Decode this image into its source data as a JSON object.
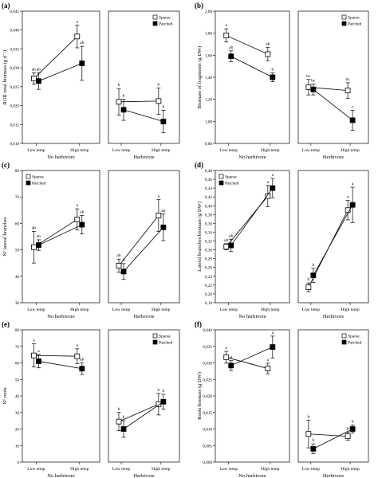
{
  "figure": {
    "category_labels": [
      "Low temp",
      "High temp"
    ],
    "treatment_labels": [
      "No herbivore",
      "Herbivore"
    ],
    "legend": {
      "open": "Sparse",
      "filled": "Patched"
    }
  },
  "chart_data": [
    {
      "panel": "(a)",
      "type": "line",
      "ylabel": "RGR total biomass (g d⁻¹)",
      "ylim": [
        0.01,
        0.045
      ],
      "yticks": [
        "0,010",
        "0,015",
        "0,020",
        "0,025",
        "0,030",
        "0,035",
        "0,040",
        "0,045"
      ],
      "legend_position": "top-right",
      "groups": [
        {
          "label": "No herbivore",
          "series": [
            {
              "name": "Sparse",
              "values": [
                0.0272,
                0.0383
              ],
              "err": [
                0.0015,
                0.003
              ],
              "letters": [
                "ab",
                "a"
              ]
            },
            {
              "name": "Patched",
              "values": [
                0.0265,
                0.0312
              ],
              "err": [
                0.0022,
                0.0045
              ],
              "letters": [
                "ab",
                "ab"
              ]
            }
          ]
        },
        {
          "label": "Herbivore",
          "series": [
            {
              "name": "Sparse",
              "values": [
                0.021,
                0.0212
              ],
              "err": [
                0.0035,
                0.0035
              ],
              "letters": [
                "b",
                "b"
              ]
            },
            {
              "name": "Patched",
              "values": [
                0.0189,
                0.0158
              ],
              "err": [
                0.0028,
                0.003
              ],
              "letters": [
                "b",
                "b"
              ]
            }
          ]
        }
      ]
    },
    {
      "panel": "(b)",
      "type": "line",
      "ylabel": "Biomass of fragments (g DW)",
      "ylim": [
        0.8,
        2.0
      ],
      "yticks": [
        "0,80",
        "1,00",
        "1,20",
        "1,40",
        "1,60",
        "1,80",
        "2,00"
      ],
      "legend_position": "top-right",
      "groups": [
        {
          "label": "No herbivore",
          "series": [
            {
              "name": "Sparse",
              "values": [
                1.78,
                1.61
              ],
              "err": [
                0.06,
                0.06
              ],
              "letters": [
                "a",
                "ab"
              ]
            },
            {
              "name": "Patched",
              "values": [
                1.59,
                1.4
              ],
              "err": [
                0.05,
                0.04
              ],
              "letters": [
                "ab",
                "b"
              ]
            }
          ]
        },
        {
          "label": "Herbivore",
          "series": [
            {
              "name": "Sparse",
              "values": [
                1.31,
                1.28
              ],
              "err": [
                0.07,
                0.07
              ],
              "letters": [
                "bc",
                "bc"
              ]
            },
            {
              "name": "Patched",
              "values": [
                1.29,
                1.01
              ],
              "err": [
                0.05,
                0.09
              ],
              "letters": [
                "bc",
                "c"
              ]
            }
          ]
        }
      ]
    },
    {
      "panel": "(c)",
      "type": "line",
      "ylabel": "Nº lateral branches",
      "ylim": [
        30,
        80
      ],
      "yticks": [
        "30",
        "40",
        "50",
        "60",
        "70",
        "80"
      ],
      "legend_position": "top-left",
      "groups": [
        {
          "label": "No herbivore",
          "series": [
            {
              "name": "Sparse",
              "values": [
                51,
                61.5
              ],
              "err": [
                6,
                4
              ],
              "letters": [
                "ab",
                "a"
              ]
            },
            {
              "name": "Patched",
              "values": [
                51.8,
                59.5
              ],
              "err": [
                2,
                3.5
              ],
              "letters": [
                "ab",
                "ab"
              ]
            }
          ]
        },
        {
          "label": "Herbivore",
          "series": [
            {
              "name": "Sparse",
              "values": [
                44,
                63
              ],
              "err": [
                2.5,
                6
              ],
              "letters": [
                "ab",
                "a"
              ]
            },
            {
              "name": "Patched",
              "values": [
                41.8,
                58.5
              ],
              "err": [
                3,
                5
              ],
              "letters": [
                "b",
                "ab"
              ]
            }
          ]
        }
      ]
    },
    {
      "panel": "(d)",
      "type": "line",
      "ylabel": "Lateral branches biomass (g DW)",
      "ylim": [
        0.18,
        0.48
      ],
      "yticks": [
        "0,18",
        "0,20",
        "0,22",
        "0,24",
        "0,26",
        "0,28",
        "0,30",
        "0,32",
        "0,34",
        "0,36",
        "0,38",
        "0,40",
        "0,42",
        "0,44",
        "0,46",
        "0,48"
      ],
      "legend_position": "top-left",
      "groups": [
        {
          "label": "No herbivore",
          "series": [
            {
              "name": "Sparse",
              "values": [
                0.307,
                0.422
              ],
              "err": [
                0.007,
                0.024
              ],
              "letters": [
                "ab",
                "a"
              ]
            },
            {
              "name": "Patched",
              "values": [
                0.31,
                0.44
              ],
              "err": [
                0.014,
                0.022
              ],
              "letters": [
                "ab",
                "a"
              ]
            }
          ]
        },
        {
          "label": "Herbivore",
          "series": [
            {
              "name": "Sparse",
              "values": [
                0.215,
                0.39
              ],
              "err": [
                0.01,
                0.022
              ],
              "letters": [
                "b",
                "a"
              ]
            },
            {
              "name": "Patched",
              "values": [
                0.242,
                0.402
              ],
              "err": [
                0.016,
                0.04
              ],
              "letters": [
                "b",
                "a"
              ]
            }
          ]
        }
      ]
    },
    {
      "panel": "(e)",
      "type": "line",
      "ylabel": "Nº roots",
      "ylim": [
        0,
        80
      ],
      "yticks": [
        "0",
        "10",
        "20",
        "30",
        "40",
        "50",
        "60",
        "70",
        "80"
      ],
      "legend_position": "top-right",
      "groups": [
        {
          "label": "No herbivore",
          "series": [
            {
              "name": "Sparse",
              "values": [
                64.5,
                64
              ],
              "err": [
                7,
                4.5
              ],
              "letters": [
                "a",
                "a"
              ]
            },
            {
              "name": "Patched",
              "values": [
                61,
                56.5
              ],
              "err": [
                4,
                3.5
              ],
              "letters": [
                "a",
                "ab"
              ]
            }
          ]
        },
        {
          "label": "Herbivore",
          "series": [
            {
              "name": "Sparse",
              "values": [
                24.5,
                35
              ],
              "err": [
                5.5,
                6.5
              ],
              "letters": [
                "b",
                "b"
              ]
            },
            {
              "name": "Patched",
              "values": [
                20,
                36.5
              ],
              "err": [
                5,
                4.5
              ],
              "letters": [
                "b",
                "b"
              ]
            }
          ]
        }
      ]
    },
    {
      "panel": "(f)",
      "type": "line",
      "ylabel": "Roots biomass (g DW)",
      "ylim": [
        0,
        0.04
      ],
      "yticks": [
        "0,000",
        "0,005",
        "0,010",
        "0,015",
        "0,020",
        "0,025",
        "0,030",
        "0,035",
        "0,040"
      ],
      "legend_position": "top-right",
      "groups": [
        {
          "label": "No herbivore",
          "series": [
            {
              "name": "Sparse",
              "values": [
                0.0317,
                0.0283
              ],
              "err": [
                0.0018,
                0.0016
              ],
              "letters": [
                "a",
                "a"
              ]
            },
            {
              "name": "Patched",
              "values": [
                0.0292,
                0.0348
              ],
              "err": [
                0.0015,
                0.0033
              ],
              "letters": [
                "a",
                "a"
              ]
            }
          ]
        },
        {
          "label": "Herbivore",
          "series": [
            {
              "name": "Sparse",
              "values": [
                0.0085,
                0.0078
              ],
              "err": [
                0.0042,
                0.0012
              ],
              "letters": [
                "b",
                "b"
              ]
            },
            {
              "name": "Patched",
              "values": [
                0.004,
                0.01
              ],
              "err": [
                0.0015,
                0.0012
              ],
              "letters": [
                "b",
                "b"
              ]
            }
          ]
        }
      ]
    }
  ]
}
